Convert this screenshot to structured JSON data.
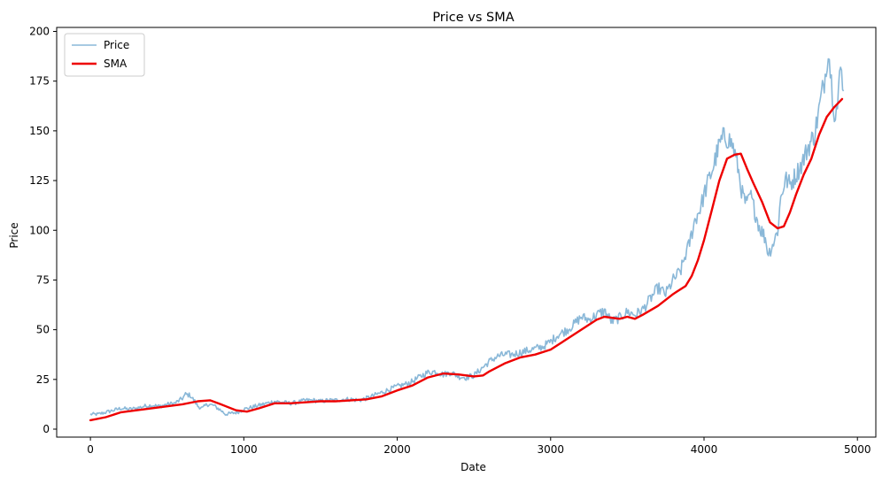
{
  "chart_data": {
    "type": "line",
    "title": "Price vs SMA",
    "xlabel": "Date",
    "ylabel": "Price",
    "xlim": [
      -220,
      5120
    ],
    "ylim": [
      -4,
      202
    ],
    "xticks": [
      0,
      1000,
      2000,
      3000,
      4000,
      5000
    ],
    "yticks": [
      0,
      25,
      50,
      75,
      100,
      125,
      150,
      175,
      200
    ],
    "grid": false,
    "legend_position": "top-left",
    "series": [
      {
        "name": "Price",
        "color": "#8ab8d8",
        "style": "noisy-line",
        "points": [
          [
            0,
            7.5
          ],
          [
            50,
            7.5
          ],
          [
            100,
            8.5
          ],
          [
            150,
            9.5
          ],
          [
            200,
            10.5
          ],
          [
            250,
            10
          ],
          [
            300,
            10.5
          ],
          [
            350,
            11.5
          ],
          [
            400,
            12
          ],
          [
            450,
            11.5
          ],
          [
            500,
            12.5
          ],
          [
            550,
            13
          ],
          [
            600,
            15.5
          ],
          [
            620,
            17.5
          ],
          [
            650,
            17
          ],
          [
            680,
            14
          ],
          [
            700,
            11.5
          ],
          [
            730,
            10.5
          ],
          [
            760,
            12.5
          ],
          [
            800,
            12
          ],
          [
            850,
            9.5
          ],
          [
            880,
            7.5
          ],
          [
            920,
            8
          ],
          [
            960,
            8.5
          ],
          [
            1000,
            10
          ],
          [
            1050,
            11
          ],
          [
            1100,
            12
          ],
          [
            1150,
            13
          ],
          [
            1200,
            14
          ],
          [
            1250,
            13.5
          ],
          [
            1300,
            13
          ],
          [
            1350,
            13.5
          ],
          [
            1400,
            14.5
          ],
          [
            1450,
            14.5
          ],
          [
            1500,
            14
          ],
          [
            1550,
            14.5
          ],
          [
            1600,
            14.5
          ],
          [
            1650,
            15
          ],
          [
            1700,
            15
          ],
          [
            1750,
            14.5
          ],
          [
            1800,
            15.5
          ],
          [
            1850,
            17
          ],
          [
            1900,
            18.5
          ],
          [
            1950,
            20
          ],
          [
            2000,
            21.5
          ],
          [
            2050,
            22.5
          ],
          [
            2100,
            24
          ],
          [
            2150,
            26.5
          ],
          [
            2200,
            28.5
          ],
          [
            2250,
            29
          ],
          [
            2300,
            27.5
          ],
          [
            2350,
            28.5
          ],
          [
            2400,
            26.5
          ],
          [
            2450,
            26
          ],
          [
            2500,
            27
          ],
          [
            2550,
            30.5
          ],
          [
            2600,
            34
          ],
          [
            2650,
            36.5
          ],
          [
            2700,
            37.5
          ],
          [
            2750,
            37.5
          ],
          [
            2800,
            38.5
          ],
          [
            2850,
            39.5
          ],
          [
            2900,
            40.5
          ],
          [
            2950,
            41.5
          ],
          [
            3000,
            44
          ],
          [
            3050,
            47.5
          ],
          [
            3100,
            49.5
          ],
          [
            3150,
            52.5
          ],
          [
            3200,
            56.5
          ],
          [
            3250,
            55
          ],
          [
            3300,
            57.5
          ],
          [
            3350,
            59.5
          ],
          [
            3400,
            54
          ],
          [
            3450,
            56
          ],
          [
            3500,
            59
          ],
          [
            3550,
            57.5
          ],
          [
            3600,
            60
          ],
          [
            3650,
            65.5
          ],
          [
            3700,
            71
          ],
          [
            3750,
            68
          ],
          [
            3800,
            75
          ],
          [
            3850,
            80
          ],
          [
            3880,
            88
          ],
          [
            3900,
            92
          ],
          [
            3940,
            105
          ],
          [
            3980,
            112
          ],
          [
            4000,
            118
          ],
          [
            4030,
            125
          ],
          [
            4060,
            132
          ],
          [
            4100,
            143
          ],
          [
            4130,
            147
          ],
          [
            4160,
            146
          ],
          [
            4190,
            142
          ],
          [
            4220,
            132
          ],
          [
            4250,
            118
          ],
          [
            4280,
            112
          ],
          [
            4300,
            118
          ],
          [
            4330,
            110
          ],
          [
            4360,
            102
          ],
          [
            4400,
            96
          ],
          [
            4420,
            88
          ],
          [
            4440,
            92
          ],
          [
            4460,
            95
          ],
          [
            4480,
            100
          ],
          [
            4500,
            116
          ],
          [
            4530,
            126
          ],
          [
            4560,
            123
          ],
          [
            4600,
            128
          ],
          [
            4640,
            134
          ],
          [
            4680,
            142
          ],
          [
            4720,
            148
          ],
          [
            4760,
            165
          ],
          [
            4790,
            178
          ],
          [
            4810,
            192
          ],
          [
            4830,
            175
          ],
          [
            4850,
            160
          ],
          [
            4870,
            162
          ],
          [
            4890,
            182
          ],
          [
            4910,
            170
          ]
        ]
      },
      {
        "name": "SMA",
        "color": "#ee0000",
        "style": "smooth-line",
        "points": [
          [
            0,
            4.5
          ],
          [
            100,
            6
          ],
          [
            200,
            8.5
          ],
          [
            300,
            9.5
          ],
          [
            400,
            10.5
          ],
          [
            500,
            11.5
          ],
          [
            600,
            12.5
          ],
          [
            700,
            14
          ],
          [
            780,
            14.5
          ],
          [
            850,
            12.5
          ],
          [
            950,
            9.5
          ],
          [
            1020,
            8.8
          ],
          [
            1100,
            10.5
          ],
          [
            1200,
            13
          ],
          [
            1300,
            13
          ],
          [
            1400,
            13.5
          ],
          [
            1500,
            14
          ],
          [
            1600,
            14
          ],
          [
            1700,
            14.5
          ],
          [
            1800,
            15
          ],
          [
            1900,
            16.5
          ],
          [
            2000,
            19.5
          ],
          [
            2100,
            22
          ],
          [
            2200,
            26
          ],
          [
            2300,
            28
          ],
          [
            2400,
            27.5
          ],
          [
            2500,
            26.5
          ],
          [
            2560,
            27
          ],
          [
            2600,
            29
          ],
          [
            2700,
            33
          ],
          [
            2800,
            36
          ],
          [
            2900,
            37.5
          ],
          [
            3000,
            40
          ],
          [
            3100,
            45
          ],
          [
            3200,
            50
          ],
          [
            3300,
            55
          ],
          [
            3350,
            56.5
          ],
          [
            3450,
            55.5
          ],
          [
            3500,
            56.5
          ],
          [
            3550,
            55.5
          ],
          [
            3600,
            57.5
          ],
          [
            3700,
            62
          ],
          [
            3800,
            68
          ],
          [
            3880,
            72
          ],
          [
            3920,
            77
          ],
          [
            3960,
            85
          ],
          [
            4000,
            95
          ],
          [
            4050,
            110
          ],
          [
            4100,
            125
          ],
          [
            4150,
            136
          ],
          [
            4200,
            138
          ],
          [
            4240,
            138.5
          ],
          [
            4280,
            131
          ],
          [
            4320,
            124
          ],
          [
            4380,
            114
          ],
          [
            4430,
            104
          ],
          [
            4480,
            101
          ],
          [
            4520,
            102
          ],
          [
            4560,
            109
          ],
          [
            4600,
            118
          ],
          [
            4650,
            128
          ],
          [
            4700,
            136
          ],
          [
            4750,
            148
          ],
          [
            4800,
            157
          ],
          [
            4850,
            162
          ],
          [
            4900,
            166
          ]
        ]
      }
    ]
  }
}
